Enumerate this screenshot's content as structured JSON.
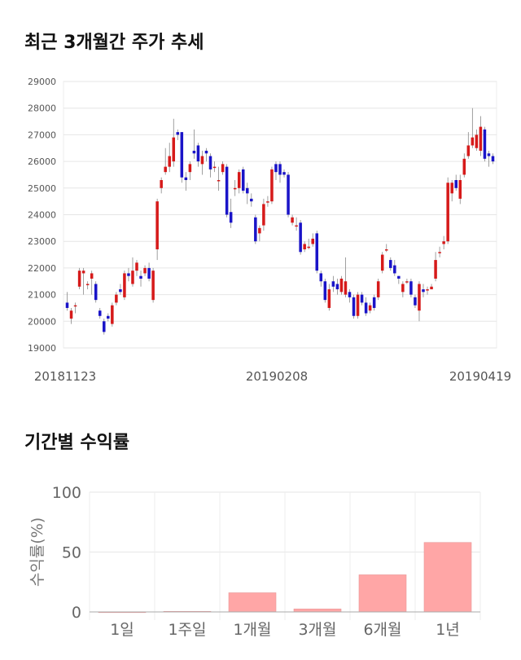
{
  "titles": {
    "price": "최근 3개월간 주가 추세",
    "returns": "기간별 수익률"
  },
  "colors": {
    "up": "#d61a1a",
    "down": "#1a14c8",
    "bar": "#ffa6a6",
    "grid": "#e6e6e6"
  },
  "chart_data": [
    {
      "type": "candlestick",
      "title": "최근 3개월간 주가 추세",
      "ylim": [
        19000,
        29000
      ],
      "yticks": [
        "29000",
        "28000",
        "27000",
        "26000",
        "25000",
        "24000",
        "23000",
        "22000",
        "21000",
        "20000",
        "19000"
      ],
      "xticks": [
        "20181123",
        "20190208",
        "20190419"
      ],
      "grid": true,
      "candles": [
        [
          20700,
          20500,
          21100,
          20400
        ],
        [
          20100,
          20400,
          20500,
          19900
        ],
        [
          20600,
          20600,
          20700,
          20300
        ],
        [
          21300,
          21900,
          22000,
          21200
        ],
        [
          21800,
          21900,
          22000,
          21000
        ],
        [
          21400,
          21400,
          21500,
          21200
        ],
        [
          21600,
          21800,
          21900,
          21000
        ],
        [
          21400,
          20800,
          21500,
          20700
        ],
        [
          20400,
          20200,
          20500,
          20100
        ],
        [
          20000,
          19600,
          20100,
          19500
        ],
        [
          20200,
          20100,
          20300,
          20000
        ],
        [
          19900,
          20600,
          20700,
          19800
        ],
        [
          20700,
          21000,
          21100,
          20600
        ],
        [
          21200,
          21100,
          21400,
          21000
        ],
        [
          20900,
          21800,
          21900,
          20800
        ],
        [
          21800,
          21700,
          22000,
          21500
        ],
        [
          21400,
          21900,
          22400,
          21300
        ],
        [
          21900,
          22200,
          22300,
          21700
        ],
        [
          21700,
          21600,
          21900,
          21300
        ],
        [
          21800,
          22000,
          22100,
          21700
        ],
        [
          22000,
          21600,
          22200,
          21500
        ],
        [
          20800,
          21900,
          22000,
          20700
        ],
        [
          22700,
          24500,
          24600,
          22300
        ],
        [
          25000,
          25300,
          25400,
          24800
        ],
        [
          25600,
          25800,
          26500,
          25500
        ],
        [
          25800,
          26200,
          26700,
          25600
        ],
        [
          26000,
          26900,
          27600,
          25800
        ],
        [
          27100,
          27000,
          27200,
          26800
        ],
        [
          27100,
          25400,
          27100,
          25200
        ],
        [
          25400,
          25300,
          25600,
          24900
        ],
        [
          25600,
          25900,
          26000,
          25300
        ],
        [
          26400,
          26300,
          27200,
          26100
        ],
        [
          26600,
          26000,
          26700,
          25800
        ],
        [
          25900,
          26200,
          26400,
          25500
        ],
        [
          26400,
          26300,
          26500,
          26000
        ],
        [
          26200,
          25700,
          26300,
          25400
        ],
        [
          25800,
          25800,
          26000,
          25600
        ],
        [
          25300,
          25300,
          25800,
          24900
        ],
        [
          25600,
          25900,
          26000,
          25500
        ],
        [
          25800,
          24000,
          25900,
          23900
        ],
        [
          24100,
          23700,
          24600,
          23500
        ],
        [
          25000,
          25000,
          25300,
          24700
        ],
        [
          25000,
          25600,
          25700,
          24800
        ],
        [
          25700,
          24900,
          25800,
          24800
        ],
        [
          25000,
          24800,
          25200,
          24400
        ],
        [
          24600,
          24500,
          24800,
          24300
        ],
        [
          23900,
          23000,
          24000,
          22900
        ],
        [
          23300,
          23500,
          23600,
          23000
        ],
        [
          23600,
          24400,
          24600,
          23400
        ],
        [
          24500,
          24500,
          24700,
          24300
        ],
        [
          24500,
          25700,
          25800,
          24400
        ],
        [
          25900,
          25600,
          26000,
          25300
        ],
        [
          25900,
          25500,
          26000,
          25200
        ],
        [
          25600,
          25500,
          25700,
          25400
        ],
        [
          25500,
          24000,
          25600,
          23900
        ],
        [
          23700,
          23900,
          24000,
          23600
        ],
        [
          23600,
          23600,
          23900,
          23400
        ],
        [
          23700,
          22600,
          23800,
          22500
        ],
        [
          22700,
          22900,
          23000,
          22600
        ],
        [
          22800,
          22800,
          23100,
          22700
        ],
        [
          22900,
          23100,
          23300,
          22800
        ],
        [
          23300,
          21900,
          23400,
          21800
        ],
        [
          21800,
          21500,
          21900,
          21300
        ],
        [
          21500,
          20800,
          21600,
          20700
        ],
        [
          20500,
          21200,
          21400,
          20400
        ],
        [
          21500,
          21300,
          21700,
          21100
        ],
        [
          21400,
          21200,
          21600,
          21000
        ],
        [
          21100,
          21600,
          21700,
          21000
        ],
        [
          21000,
          21500,
          22400,
          20900
        ],
        [
          21100,
          20900,
          21200,
          20700
        ],
        [
          20900,
          20200,
          21000,
          20100
        ],
        [
          20200,
          21000,
          21100,
          20100
        ],
        [
          21000,
          20700,
          21100,
          20600
        ],
        [
          20700,
          20300,
          20900,
          20200
        ],
        [
          20400,
          20600,
          20700,
          20300
        ],
        [
          20900,
          20500,
          21000,
          20400
        ],
        [
          20900,
          21500,
          21600,
          20800
        ],
        [
          21900,
          22500,
          22600,
          21800
        ],
        [
          22700,
          22700,
          22900,
          22600
        ],
        [
          22300,
          22000,
          22400,
          21900
        ],
        [
          22100,
          21800,
          22300,
          21700
        ],
        [
          21700,
          21600,
          21700,
          21400
        ],
        [
          21100,
          21400,
          21500,
          20900
        ],
        [
          21500,
          21500,
          21600,
          21400
        ],
        [
          21500,
          21000,
          21600,
          20900
        ],
        [
          20900,
          20600,
          21000,
          20500
        ],
        [
          20400,
          21400,
          21500,
          20000
        ],
        [
          21200,
          21100,
          21400,
          20900
        ],
        [
          21200,
          21200,
          21300,
          21000
        ],
        [
          21200,
          21300,
          21400,
          21200
        ],
        [
          21600,
          22300,
          22600,
          21500
        ],
        [
          22600,
          22600,
          22800,
          22400
        ],
        [
          22900,
          23000,
          23200,
          22700
        ],
        [
          23000,
          25200,
          25400,
          22900
        ],
        [
          24800,
          25200,
          25300,
          24500
        ],
        [
          25300,
          25000,
          25500,
          24900
        ],
        [
          24600,
          25300,
          25500,
          24400
        ],
        [
          25500,
          26100,
          26300,
          25400
        ],
        [
          26200,
          26600,
          27100,
          26100
        ],
        [
          26600,
          26900,
          28000,
          26500
        ],
        [
          26500,
          27000,
          27200,
          26400
        ],
        [
          26400,
          27300,
          27700,
          26200
        ],
        [
          27200,
          26100,
          27300,
          26000
        ],
        [
          26300,
          26200,
          26400,
          25800
        ],
        [
          26200,
          26000,
          26300,
          25900
        ]
      ]
    },
    {
      "type": "bar",
      "title": "기간별 수익률",
      "ylabel": "수익률(%)",
      "ylim": [
        0,
        100
      ],
      "yticks": [
        "100",
        "50",
        "0"
      ],
      "categories": [
        "1일",
        "1주일",
        "1개월",
        "3개월",
        "6개월",
        "1년"
      ],
      "values": [
        0,
        0.5,
        16,
        2.5,
        31,
        58
      ]
    }
  ]
}
